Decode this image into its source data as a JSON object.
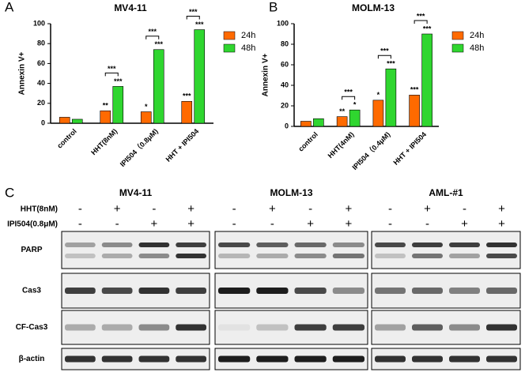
{
  "chart_data": [
    {
      "type": "bar",
      "panel_label": "A",
      "title": "MV4-11",
      "y_label": "Annexin V+",
      "categories": [
        "control",
        "HHT(8nM)",
        "IPI504（0.8μM)",
        "HHT + IPI504"
      ],
      "series": [
        {
          "name": "24h",
          "color": "#ff6a00",
          "values": [
            6,
            12.5,
            11.5,
            22
          ],
          "annotations": [
            null,
            "**",
            "*",
            "***"
          ]
        },
        {
          "name": "48h",
          "color": "#2fd62f",
          "values": [
            4,
            37,
            74,
            94
          ],
          "annotations": [
            null,
            "***",
            "***",
            "***"
          ]
        }
      ],
      "bracket_labels": [
        null,
        "***",
        "***",
        "***"
      ],
      "ylim": [
        0,
        100
      ],
      "yticks": [
        0,
        20,
        40,
        60,
        80,
        100
      ],
      "grid": false,
      "legend": "right"
    },
    {
      "type": "bar",
      "panel_label": "B",
      "title": "MOLM-13",
      "y_label": "Annexin V+",
      "categories": [
        "control",
        "HHT(4nM)",
        "IPI504（0.4μM)",
        "HHT + IPI504"
      ],
      "series": [
        {
          "name": "24h",
          "color": "#ff6a00",
          "values": [
            5,
            9.5,
            25.5,
            30.5
          ],
          "annotations": [
            null,
            "**",
            "*",
            "***"
          ]
        },
        {
          "name": "48h",
          "color": "#2fd62f",
          "values": [
            7.5,
            16,
            56,
            90
          ],
          "annotations": [
            null,
            "*",
            "***",
            "***"
          ]
        }
      ],
      "bracket_labels": [
        null,
        "***",
        "***",
        "***"
      ],
      "ylim": [
        0,
        100
      ],
      "yticks": [
        0,
        20,
        40,
        60,
        80,
        100
      ],
      "grid": false,
      "legend": "right"
    }
  ],
  "blot": {
    "panel_label": "C",
    "treatments": [
      "HHT(8nM)",
      "IPI504(0.8μM)"
    ],
    "groups": [
      {
        "name": "MV4-11",
        "hht_signs": [
          "-",
          "+",
          "-",
          "+"
        ],
        "ipi_signs": [
          "-",
          "-",
          "+",
          "+"
        ]
      },
      {
        "name": "MOLM-13",
        "hht_signs": [
          "-",
          "+",
          "-",
          "+"
        ],
        "ipi_signs": [
          "-",
          "-",
          "+",
          "+"
        ]
      },
      {
        "name": "AML-#1",
        "hht_signs": [
          "-",
          "+",
          "-",
          "+"
        ],
        "ipi_signs": [
          "-",
          "-",
          "+",
          "+"
        ]
      }
    ],
    "proteins": [
      "PARP",
      "Cas3",
      "CF-Cas3",
      "β-actin"
    ]
  }
}
